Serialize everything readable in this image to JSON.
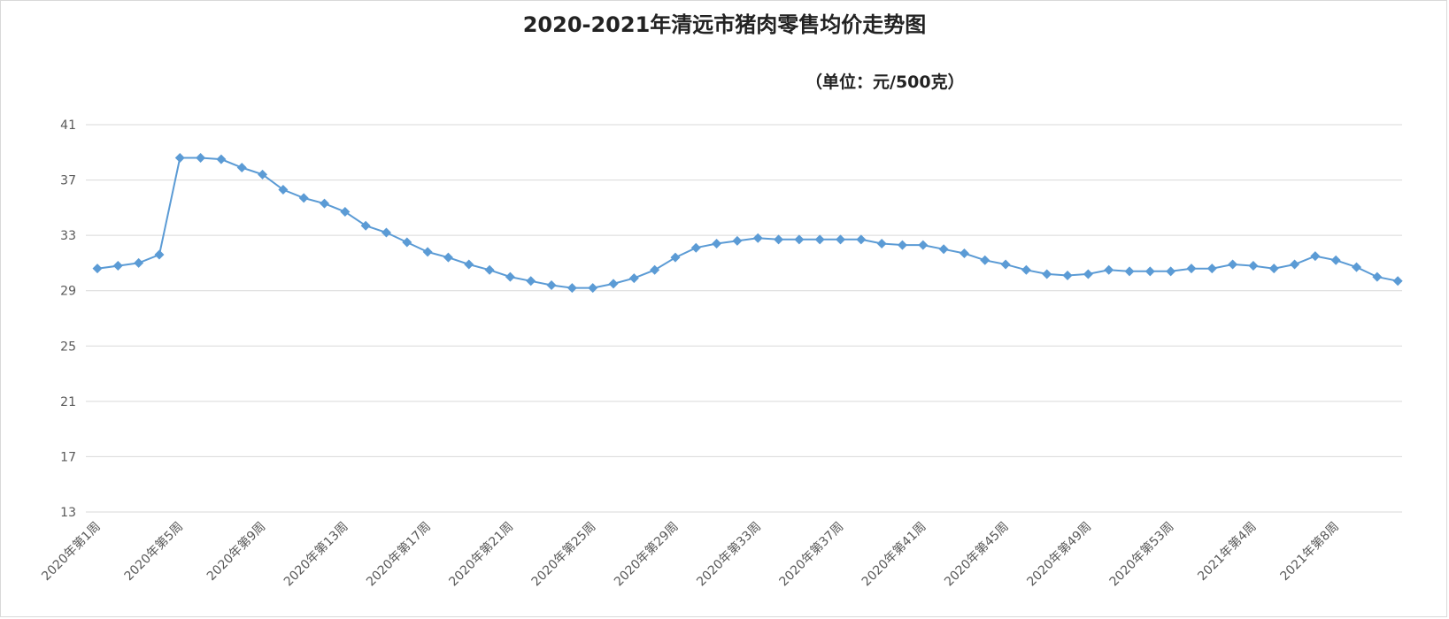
{
  "chart_data": {
    "type": "line",
    "title": "2020-2021年清远市猪肉零售均价走势图",
    "unit_label": "（单位：元/500克）",
    "y_ticks": [
      "41",
      "37",
      "33",
      "29",
      "25",
      "21",
      "17",
      "13"
    ],
    "ylim": [
      13,
      41
    ],
    "x_tick_labels": [
      "2020年第1周",
      "2020年第5周",
      "2020年第9周",
      "2020年第13周",
      "2020年第17周",
      "2020年第21周",
      "2020年第25周",
      "2020年第29周",
      "2020年第33周",
      "2020年第37周",
      "2020年第41周",
      "2020年第45周",
      "2020年第49周",
      "2020年第53周",
      "2021年第4周",
      "2021年第8周"
    ],
    "grid": true,
    "legend": "none",
    "series": [
      {
        "color": "#5b9bd5",
        "values": [
          30.6,
          30.8,
          31.0,
          31.6,
          38.6,
          38.6,
          38.5,
          37.9,
          37.4,
          36.3,
          35.7,
          35.3,
          34.7,
          33.7,
          33.2,
          32.5,
          31.8,
          31.4,
          30.9,
          30.5,
          30.0,
          29.7,
          29.4,
          29.2,
          29.2,
          29.5,
          29.9,
          30.5,
          31.4,
          32.1,
          32.4,
          32.6,
          32.8,
          32.7,
          32.7,
          32.7,
          32.7,
          32.7,
          32.4,
          32.3,
          32.3,
          32.0,
          31.7,
          31.2,
          30.9,
          30.5,
          30.2,
          30.1,
          30.2,
          30.5,
          30.4,
          30.4,
          30.4,
          30.6,
          30.6,
          30.9,
          30.8,
          30.6,
          30.9,
          31.5,
          31.2,
          30.7,
          30.0,
          29.7
        ]
      }
    ]
  }
}
